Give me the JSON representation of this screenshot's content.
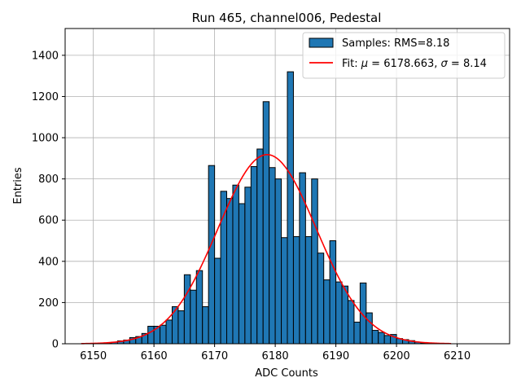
{
  "chart_data": {
    "type": "bar",
    "title": "Run 465, channel006, Pedestal",
    "xlabel": "ADC Counts",
    "ylabel": "Entries",
    "xlim": [
      6145.35,
      6218.65
    ],
    "ylim": [
      0,
      1530
    ],
    "x_ticks": [
      6150,
      6160,
      6170,
      6180,
      6190,
      6200,
      6210
    ],
    "y_ticks": [
      0,
      200,
      400,
      600,
      800,
      1000,
      1200,
      1400
    ],
    "grid": true,
    "legend_position": "top-right",
    "histogram": {
      "label": "Samples: RMS=8.18",
      "color": "#1f77b4",
      "bin_width": 1,
      "bin_starts": [
        6151,
        6152,
        6153,
        6154,
        6155,
        6156,
        6157,
        6158,
        6159,
        6160,
        6161,
        6162,
        6163,
        6164,
        6165,
        6166,
        6167,
        6168,
        6169,
        6170,
        6171,
        6172,
        6173,
        6174,
        6175,
        6176,
        6177,
        6178,
        6179,
        6180,
        6181,
        6182,
        6183,
        6184,
        6185,
        6186,
        6187,
        6188,
        6189,
        6190,
        6191,
        6192,
        6193,
        6194,
        6195,
        6196,
        6197,
        6198,
        6199,
        6200,
        6201,
        6202,
        6203,
        6204,
        6205
      ],
      "counts": [
        2,
        4,
        8,
        14,
        18,
        30,
        35,
        50,
        85,
        85,
        90,
        115,
        180,
        160,
        335,
        260,
        355,
        180,
        865,
        415,
        740,
        705,
        770,
        680,
        760,
        860,
        945,
        1175,
        855,
        800,
        515,
        1320,
        520,
        830,
        520,
        800,
        440,
        310,
        500,
        300,
        280,
        210,
        105,
        295,
        150,
        65,
        55,
        40,
        45,
        25,
        20,
        15,
        8,
        4,
        2
      ]
    },
    "fit": {
      "label_prefix": "Fit:",
      "mu": 6178.663,
      "sigma": 8.14,
      "amplitude": 918,
      "x_range": [
        6148,
        6209
      ],
      "color": "#ff0000"
    }
  }
}
